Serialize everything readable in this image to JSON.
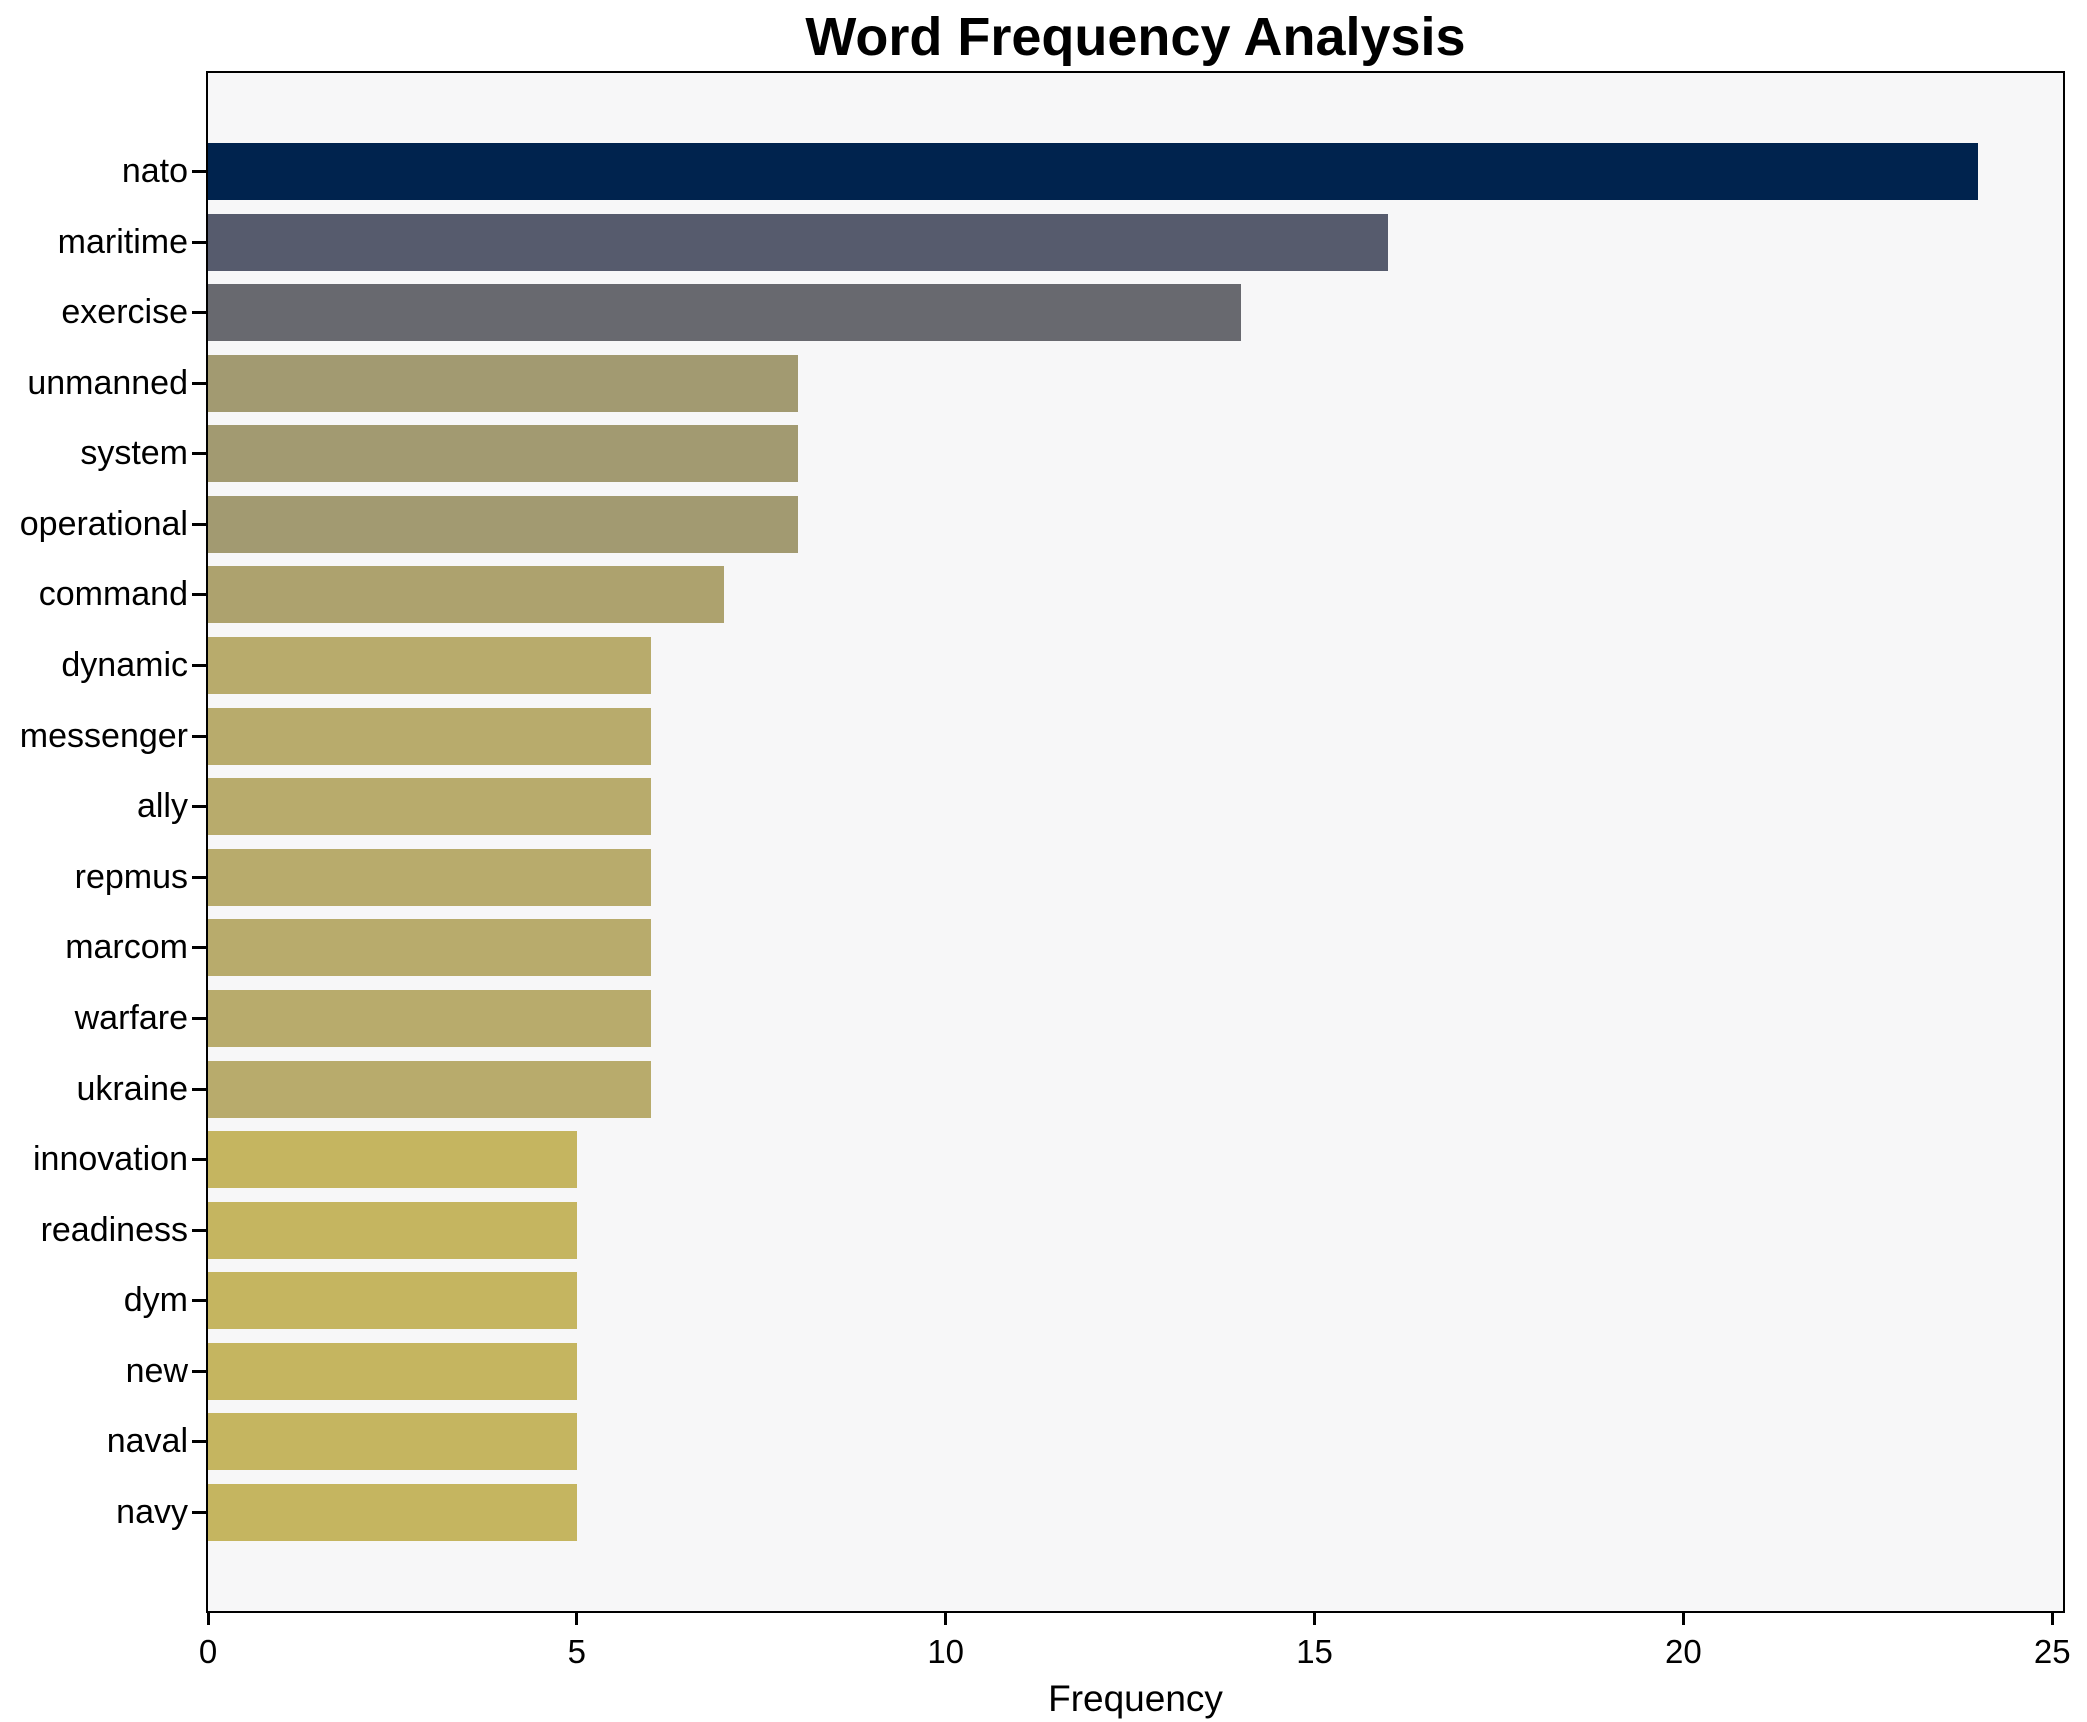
{
  "chart_data": {
    "type": "bar",
    "orientation": "horizontal",
    "title": "Word Frequency Analysis",
    "xlabel": "Frequency",
    "ylabel": "",
    "xlim": [
      0,
      25.2
    ],
    "xticks": [
      0,
      5,
      10,
      15,
      20,
      25
    ],
    "grid": false,
    "legend": false,
    "categories": [
      "nato",
      "maritime",
      "exercise",
      "unmanned",
      "system",
      "operational",
      "command",
      "dynamic",
      "messenger",
      "ally",
      "repmus",
      "marcom",
      "warfare",
      "ukraine",
      "innovation",
      "readiness",
      "dym",
      "new",
      "naval",
      "navy"
    ],
    "values": [
      24,
      16,
      14,
      8,
      8,
      8,
      7,
      6,
      6,
      6,
      6,
      6,
      6,
      6,
      5,
      5,
      5,
      5,
      5,
      5
    ],
    "bar_colors": [
      "#00234e",
      "#565b6d",
      "#68696f",
      "#a29a71",
      "#a29a71",
      "#a29a71",
      "#ada26e",
      "#b8ab6c",
      "#b8ab6c",
      "#b8ab6c",
      "#b8ab6c",
      "#b8ab6c",
      "#b8ab6c",
      "#b8ab6c",
      "#c5b560",
      "#c5b560",
      "#c5b560",
      "#c5b560",
      "#c5b560",
      "#c5b560"
    ]
  },
  "colors": {
    "figure_bg": "#ffffff",
    "plot_bg": "#f7f7f8",
    "spine": "#000000",
    "text": "#000000"
  }
}
